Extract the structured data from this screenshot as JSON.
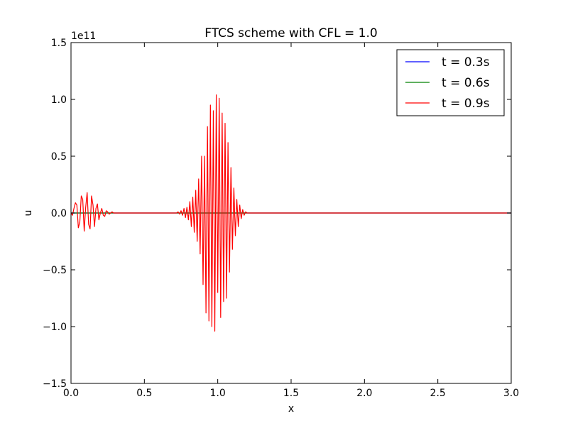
{
  "chart_data": {
    "type": "line",
    "title": "FTCS scheme with CFL = 1.0",
    "xlabel": "x",
    "ylabel": "u",
    "y_offset_text": "1e11",
    "xlim": [
      0.0,
      3.0
    ],
    "ylim": [
      -1.5,
      1.5
    ],
    "y_scale_factor": 100000000000.0,
    "x_ticks": [
      "0.0",
      "0.5",
      "1.0",
      "1.5",
      "2.0",
      "2.5",
      "3.0"
    ],
    "y_ticks": [
      "−1.5",
      "−1.0",
      "−0.5",
      "0.0",
      "0.5",
      "1.0",
      "1.5"
    ],
    "grid": false,
    "legend_position": "top-right",
    "series": [
      {
        "name": "t = 0.3s",
        "color": "#0000ff",
        "x": [
          0.0,
          3.0
        ],
        "y": [
          0.0,
          0.0
        ]
      },
      {
        "name": "t = 0.6s",
        "color": "#008000",
        "x": [
          0.0,
          3.0
        ],
        "y": [
          0.0,
          0.0
        ]
      },
      {
        "name": "t = 0.9s",
        "color": "#ff0000",
        "x": [
          0.0,
          0.01,
          0.02,
          0.03,
          0.04,
          0.05,
          0.06,
          0.07,
          0.08,
          0.09,
          0.1,
          0.11,
          0.12,
          0.13,
          0.14,
          0.15,
          0.16,
          0.17,
          0.18,
          0.19,
          0.2,
          0.21,
          0.22,
          0.23,
          0.24,
          0.25,
          0.26,
          0.27,
          0.28,
          0.29,
          0.3,
          0.32,
          0.35,
          0.4,
          0.5,
          0.6,
          0.68,
          0.7,
          0.72,
          0.73,
          0.74,
          0.75,
          0.76,
          0.77,
          0.78,
          0.79,
          0.8,
          0.81,
          0.82,
          0.83,
          0.84,
          0.85,
          0.86,
          0.87,
          0.88,
          0.89,
          0.9,
          0.91,
          0.92,
          0.93,
          0.94,
          0.95,
          0.96,
          0.97,
          0.98,
          0.99,
          1.0,
          1.01,
          1.02,
          1.03,
          1.04,
          1.05,
          1.06,
          1.07,
          1.08,
          1.09,
          1.1,
          1.11,
          1.12,
          1.13,
          1.14,
          1.15,
          1.16,
          1.17,
          1.18,
          1.19,
          1.2,
          1.21,
          1.22,
          1.23,
          1.24,
          1.25,
          1.26,
          1.27,
          1.28,
          1.29,
          1.3,
          1.31,
          1.32,
          1.35,
          1.4,
          1.5,
          2.0,
          2.5,
          3.0
        ],
        "y": [
          0.0,
          -0.02,
          0.04,
          0.09,
          0.07,
          -0.13,
          -0.08,
          0.15,
          0.12,
          -0.16,
          0.05,
          0.18,
          -0.1,
          -0.14,
          0.15,
          0.07,
          -0.12,
          0.04,
          0.08,
          -0.06,
          0.0,
          0.04,
          -0.02,
          -0.03,
          0.02,
          0.01,
          -0.01,
          0.0,
          0.01,
          0.0,
          0.0,
          0.0,
          0.0,
          0.0,
          0.0,
          0.0,
          0.0,
          0.0,
          0.0,
          0.01,
          -0.01,
          0.02,
          -0.02,
          0.04,
          -0.04,
          0.05,
          -0.06,
          0.1,
          -0.12,
          0.14,
          -0.17,
          0.2,
          -0.25,
          0.3,
          -0.36,
          0.5,
          -0.63,
          0.5,
          -0.88,
          0.76,
          -0.95,
          0.95,
          -1.0,
          0.9,
          -1.04,
          1.04,
          -0.7,
          1.01,
          -0.92,
          0.88,
          -0.78,
          0.79,
          -0.75,
          0.62,
          -0.52,
          0.4,
          -0.32,
          0.22,
          -0.2,
          0.12,
          -0.12,
          0.07,
          -0.05,
          0.03,
          -0.02,
          0.01,
          0.0,
          0.0,
          0.0,
          0.0,
          0.0,
          0.0,
          0.0,
          0.0,
          0.0,
          0.0,
          0.0,
          0.0,
          0.0,
          0.0,
          0.0,
          0.0,
          0.0,
          0.0,
          0.0
        ]
      }
    ]
  }
}
